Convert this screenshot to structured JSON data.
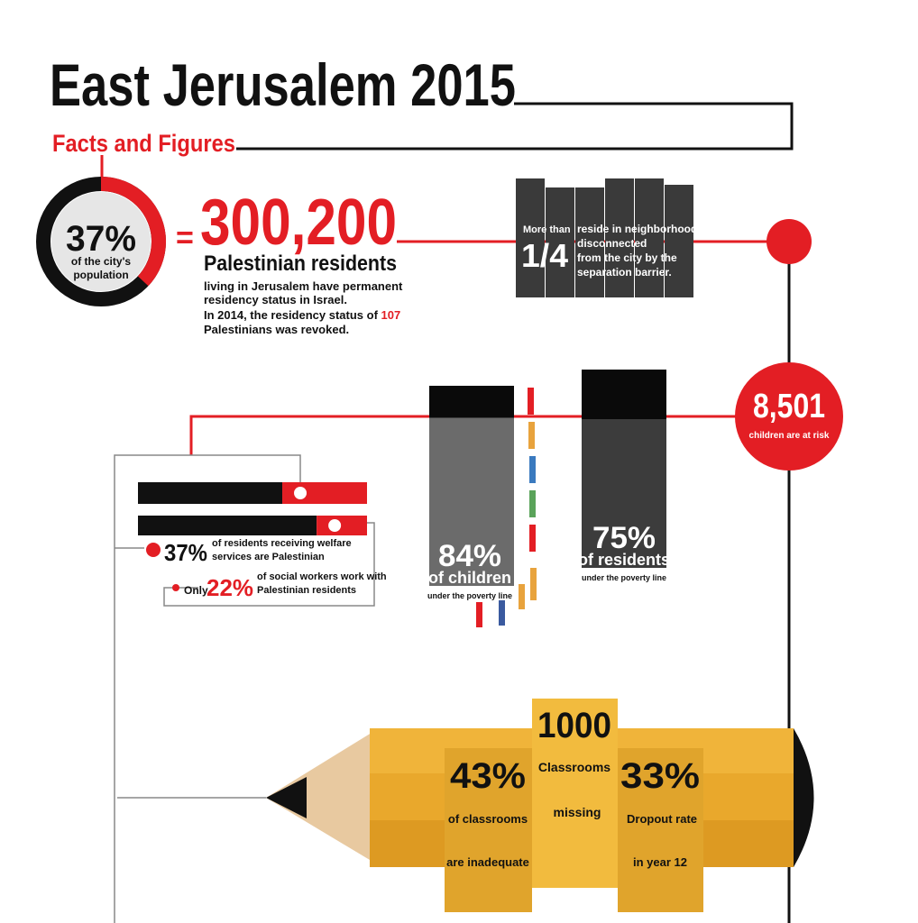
{
  "header": {
    "title": "East Jerusalem 2015",
    "subtitle": "Facts and Figures"
  },
  "population": {
    "share": 37,
    "share_label": "37%",
    "share_caption": [
      "of the city's",
      "population"
    ],
    "count": "300,200",
    "count_caption": "Palestinian residents",
    "note": [
      "living in Jerusalem have permanent",
      "residency status in Israel."
    ],
    "revoked_text": "In 2014, the residency status of",
    "revoked": "107",
    "revoked_tail": "Palestinians was revoked."
  },
  "barrier": {
    "prefix": "More than",
    "fraction": "1/4",
    "text": [
      "reside in neighborhoods",
      "disconnected",
      "from the city by the",
      "separation barrier."
    ]
  },
  "children_at_risk": {
    "count": "8,501",
    "caption": "children are at risk"
  },
  "welfare": [
    {
      "share": 37,
      "label": "37%",
      "text": [
        "of residents receiving welfare",
        "services are Palestinian"
      ]
    },
    {
      "prefix": "Only",
      "share": 22,
      "label": "22%",
      "text": [
        "of social workers work with",
        "Palestinian residents"
      ]
    }
  ],
  "poverty": [
    {
      "share": 84,
      "label": "84%",
      "group": "of children",
      "caption": "under the poverty line"
    },
    {
      "share": 75,
      "label": "75%",
      "group": "of residents",
      "caption": "under the poverty line"
    }
  ],
  "education": [
    {
      "label": "43%",
      "lines": [
        "of classrooms",
        "are inadequate"
      ]
    },
    {
      "label": "1000",
      "lines": [
        "Classrooms",
        "missing"
      ]
    },
    {
      "label": "33%",
      "lines": [
        "Dropout rate",
        "in year 12"
      ]
    }
  ]
}
